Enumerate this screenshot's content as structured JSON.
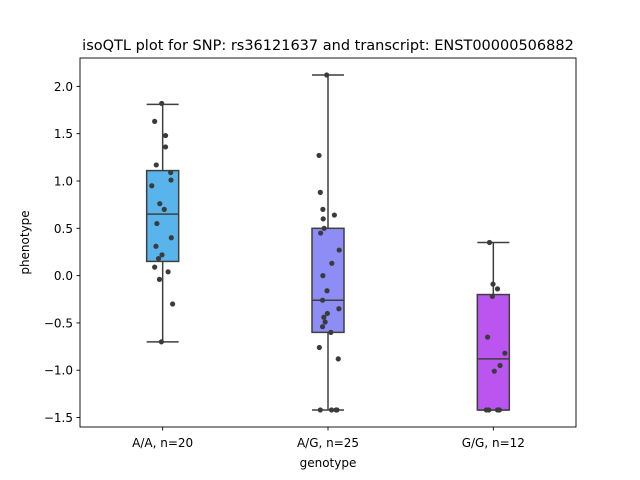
{
  "chart_data": {
    "type": "box",
    "title": "isoQTL plot for SNP: rs36121637 and transcript: ENST00000506882",
    "xlabel": "genotype",
    "ylabel": "phenotype",
    "ylim": [
      -1.6,
      2.3
    ],
    "yticks": [
      -1.5,
      -1.0,
      -0.5,
      0.0,
      0.5,
      1.0,
      1.5,
      2.0
    ],
    "ytick_labels": [
      "−1.5",
      "−1.0",
      "−0.5",
      "0.0",
      "0.5",
      "1.0",
      "1.5",
      "2.0"
    ],
    "grid": false,
    "categories": [
      "A/A, n=20",
      "A/G, n=25",
      "G/G, n=12"
    ],
    "boxes": [
      {
        "category": "A/A, n=20",
        "color": "#5ab4ec",
        "whisker_low": -0.7,
        "q1": 0.15,
        "median": 0.65,
        "q3": 1.11,
        "whisker_high": 1.81
      },
      {
        "category": "A/G, n=25",
        "color": "#8d8df5",
        "whisker_low": -1.42,
        "q1": -0.6,
        "median": -0.26,
        "q3": 0.5,
        "whisker_high": 2.12
      },
      {
        "category": "G/G, n=12",
        "color": "#bb55ef",
        "whisker_low": -1.42,
        "q1": -1.42,
        "median": -0.88,
        "q3": -0.2,
        "whisker_high": 0.35
      }
    ],
    "points": [
      [
        {
          "offset": -0.03,
          "y": 1.82
        },
        {
          "offset": -0.25,
          "y": 1.63
        },
        {
          "offset": 0.09,
          "y": 1.48
        },
        {
          "offset": 0.09,
          "y": 1.36
        },
        {
          "offset": -0.2,
          "y": 1.17
        },
        {
          "offset": 0.25,
          "y": 1.09
        },
        {
          "offset": 0.26,
          "y": 1.01
        },
        {
          "offset": -0.34,
          "y": 0.95
        },
        {
          "offset": -0.09,
          "y": 0.76
        },
        {
          "offset": -0.18,
          "y": 0.55
        },
        {
          "offset": 0.27,
          "y": 0.4
        },
        {
          "offset": -0.21,
          "y": 0.31
        },
        {
          "offset": -0.02,
          "y": 0.22
        },
        {
          "offset": -0.13,
          "y": 0.18
        },
        {
          "offset": -0.25,
          "y": 0.09
        },
        {
          "offset": 0.17,
          "y": 0.04
        },
        {
          "offset": -0.1,
          "y": -0.04
        },
        {
          "offset": 0.31,
          "y": -0.3
        },
        {
          "offset": -0.04,
          "y": -0.7
        },
        {
          "offset": 0.05,
          "y": 0.7
        }
      ],
      [
        {
          "offset": -0.04,
          "y": 2.12
        },
        {
          "offset": -0.28,
          "y": 1.27
        },
        {
          "offset": -0.24,
          "y": 0.88
        },
        {
          "offset": -0.16,
          "y": 0.7
        },
        {
          "offset": 0.2,
          "y": 0.64
        },
        {
          "offset": -0.15,
          "y": 0.6
        },
        {
          "offset": -0.12,
          "y": 0.5
        },
        {
          "offset": -0.23,
          "y": 0.45
        },
        {
          "offset": 0.35,
          "y": 0.27
        },
        {
          "offset": 0.12,
          "y": 0.13
        },
        {
          "offset": -0.16,
          "y": 0.0
        },
        {
          "offset": -0.03,
          "y": -0.16
        },
        {
          "offset": -0.17,
          "y": -0.26
        },
        {
          "offset": 0.34,
          "y": -0.35
        },
        {
          "offset": -0.02,
          "y": -0.4
        },
        {
          "offset": -0.13,
          "y": -0.44
        },
        {
          "offset": -0.09,
          "y": -0.49
        },
        {
          "offset": -0.17,
          "y": -0.54
        },
        {
          "offset": 0.09,
          "y": -0.6
        },
        {
          "offset": -0.27,
          "y": -0.76
        },
        {
          "offset": 0.32,
          "y": -0.88
        },
        {
          "offset": -0.24,
          "y": -1.42
        },
        {
          "offset": 0.11,
          "y": -1.42
        },
        {
          "offset": 0.25,
          "y": -1.42
        },
        {
          "offset": 0.28,
          "y": -1.42
        }
      ],
      [
        {
          "offset": -0.12,
          "y": 0.35
        },
        {
          "offset": -0.01,
          "y": -0.09
        },
        {
          "offset": 0.13,
          "y": -0.14
        },
        {
          "offset": -0.03,
          "y": -0.22
        },
        {
          "offset": -0.18,
          "y": -0.65
        },
        {
          "offset": 0.36,
          "y": -0.82
        },
        {
          "offset": 0.21,
          "y": -0.95
        },
        {
          "offset": 0.03,
          "y": -1.01
        },
        {
          "offset": -0.22,
          "y": -1.42
        },
        {
          "offset": -0.14,
          "y": -1.42
        },
        {
          "offset": 0.13,
          "y": -1.42
        },
        {
          "offset": 0.19,
          "y": -1.42
        }
      ]
    ]
  }
}
